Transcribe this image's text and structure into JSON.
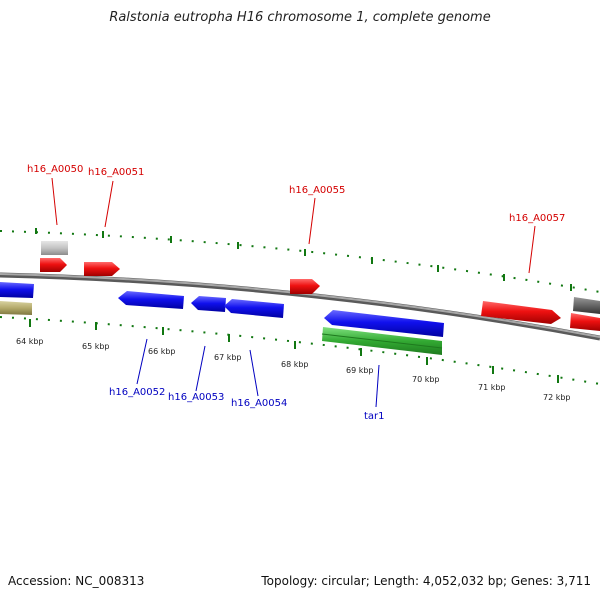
{
  "title": "Ralstonia eutropha H16 chromosome 1, complete genome",
  "footer": {
    "accession": "Accession: NC_008313",
    "summary": "Topology: circular; Length: 4,052,032 bp; Genes: 3,711"
  },
  "scale": {
    "unit": "kbp",
    "ticks": [
      "64 kbp",
      "65 kbp",
      "66 kbp",
      "67 kbp",
      "68 kbp",
      "69 kbp",
      "70 kbp",
      "71 kbp",
      "72 kbp"
    ]
  },
  "genes": {
    "forward": [
      "h16_A0050",
      "h16_A0051",
      "h16_A0055",
      "h16_A0057"
    ],
    "reverse": [
      "h16_A0052",
      "h16_A0053",
      "h16_A0054",
      "tar1"
    ]
  },
  "colors": {
    "forward_gene": "#ee1111",
    "reverse_gene": "#1111ee",
    "rna_gene": "#33aa33",
    "pseudo": "#bbbbbb",
    "backbone": "#888888",
    "tick": "#117711",
    "label_forward": "#d40000",
    "label_reverse": "#0000c0"
  }
}
